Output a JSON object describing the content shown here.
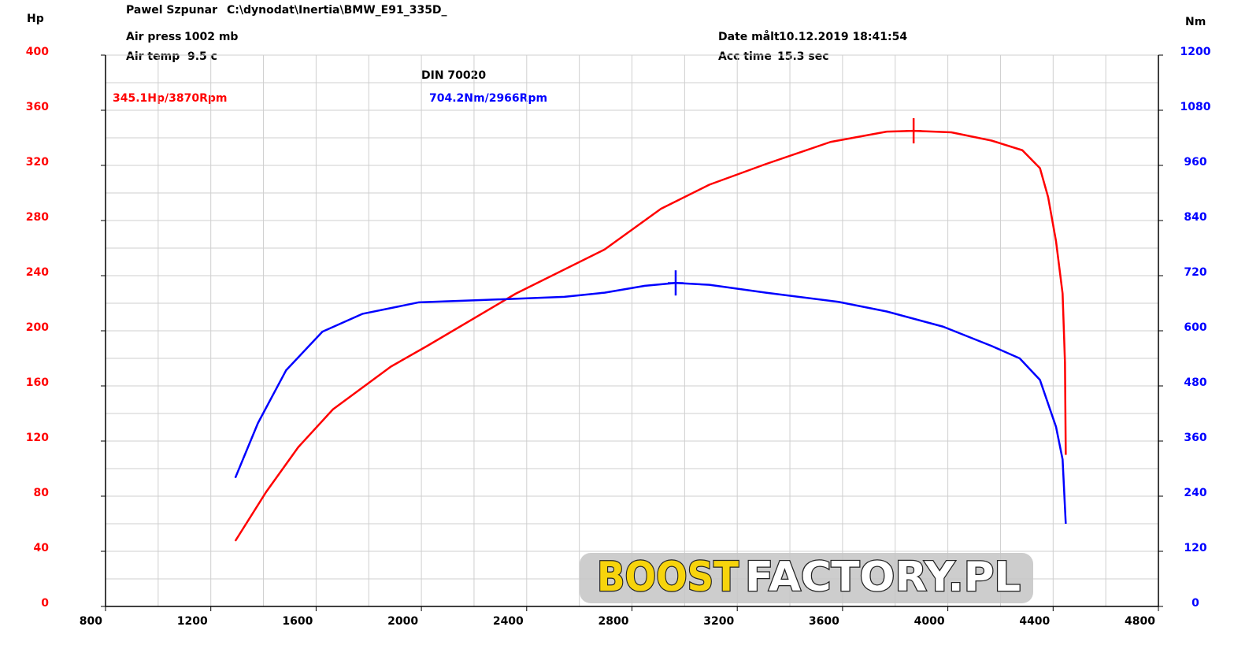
{
  "header": {
    "operator": "Pawel Szpunar",
    "file": "C:\\dynodat\\Inertia\\BMW_E91_335D_",
    "air_press_label": "Air press",
    "air_press": "1002 mb",
    "air_temp_label": "Air temp",
    "air_temp": "9.5 c",
    "date_label": "Date målt",
    "date": "10.12.2019 18:41:54",
    "acc_time_label": "Acc time",
    "acc_time": "15.3 sec"
  },
  "watermark": {
    "part1": "BOOST",
    "part2": "FACTORY.PL"
  },
  "chart_data": {
    "type": "line",
    "title": "DIN 70020",
    "y_label": "Hp",
    "y2_label": "Nm",
    "annotations": [
      "345.1Hp/3870Rpm",
      "704.2Nm/2966Rpm"
    ],
    "xlim": [
      800,
      4800
    ],
    "xticks": [
      800,
      1200,
      1600,
      2000,
      2400,
      2800,
      3200,
      3600,
      4000,
      4400,
      4800
    ],
    "ylim": [
      0,
      400
    ],
    "yticks": [
      0,
      40,
      80,
      120,
      160,
      200,
      240,
      280,
      320,
      360,
      400
    ],
    "y2lim": [
      0,
      1200
    ],
    "y2ticks": [
      0,
      120,
      240,
      360,
      480,
      600,
      720,
      840,
      960,
      1080,
      1200
    ],
    "grid": true,
    "grid_subdivisions": 2,
    "series": [
      {
        "color": "#ff0000",
        "x": [
          1293,
          1410,
          1532,
          1664,
          1884,
          2022,
          2359,
          2696,
          2910,
          3094,
          3309,
          3554,
          3768,
          3870,
          4013,
          4166,
          4283,
          4350,
          4381,
          4411,
          4436,
          4445,
          4448
        ],
        "values": [
          47.5,
          83,
          115.5,
          143,
          174,
          189,
          227,
          259,
          288.5,
          306,
          321,
          337,
          344.5,
          345.1,
          344,
          338,
          331,
          318,
          297,
          265,
          227,
          177,
          110
        ]
      },
      {
        "color": "#0000ff",
        "axis": "y2",
        "x": [
          1293,
          1379,
          1486,
          1624,
          1777,
          1991,
          2236,
          2543,
          2696,
          2849,
          2966,
          3094,
          3309,
          3584,
          3768,
          3982,
          4166,
          4273,
          4350,
          4411,
          4436,
          4448
        ],
        "values": [
          280,
          399,
          514,
          598,
          637,
          662,
          667,
          674,
          683,
          698,
          704.2,
          700,
          683,
          663,
          642,
          609,
          567,
          540,
          493,
          391,
          320,
          180
        ]
      }
    ]
  }
}
